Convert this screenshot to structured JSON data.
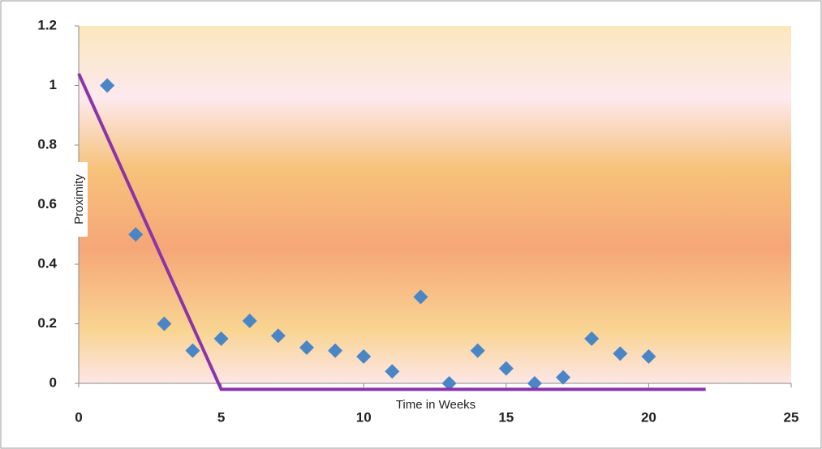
{
  "chart_data": {
    "type": "scatter",
    "x_label": "Time in Weeks",
    "y_label": "Proximity",
    "xlim": [
      0,
      25
    ],
    "ylim": [
      0,
      1.2
    ],
    "xticks": [
      0,
      5,
      10,
      15,
      20,
      25
    ],
    "yticks": [
      0,
      0.2,
      0.4,
      0.6,
      0.8,
      1,
      1.2
    ],
    "series": [
      {
        "type": "scatter",
        "color": "#4a86c5",
        "x": [
          1,
          2,
          3,
          4,
          5,
          6,
          7,
          8,
          9,
          10,
          11,
          12,
          13,
          14,
          15,
          16,
          17,
          18,
          19,
          20
        ],
        "values": [
          1.0,
          0.5,
          0.2,
          0.11,
          0.15,
          0.21,
          0.16,
          0.12,
          0.11,
          0.09,
          0.04,
          0.29,
          0,
          0.11,
          0.05,
          0,
          0.02,
          0.15,
          0.1,
          0.09
        ]
      },
      {
        "type": "line",
        "color": "#8b34a8",
        "x": [
          0,
          5,
          22
        ],
        "values": [
          1.04,
          -0.02,
          -0.02
        ]
      }
    ]
  }
}
